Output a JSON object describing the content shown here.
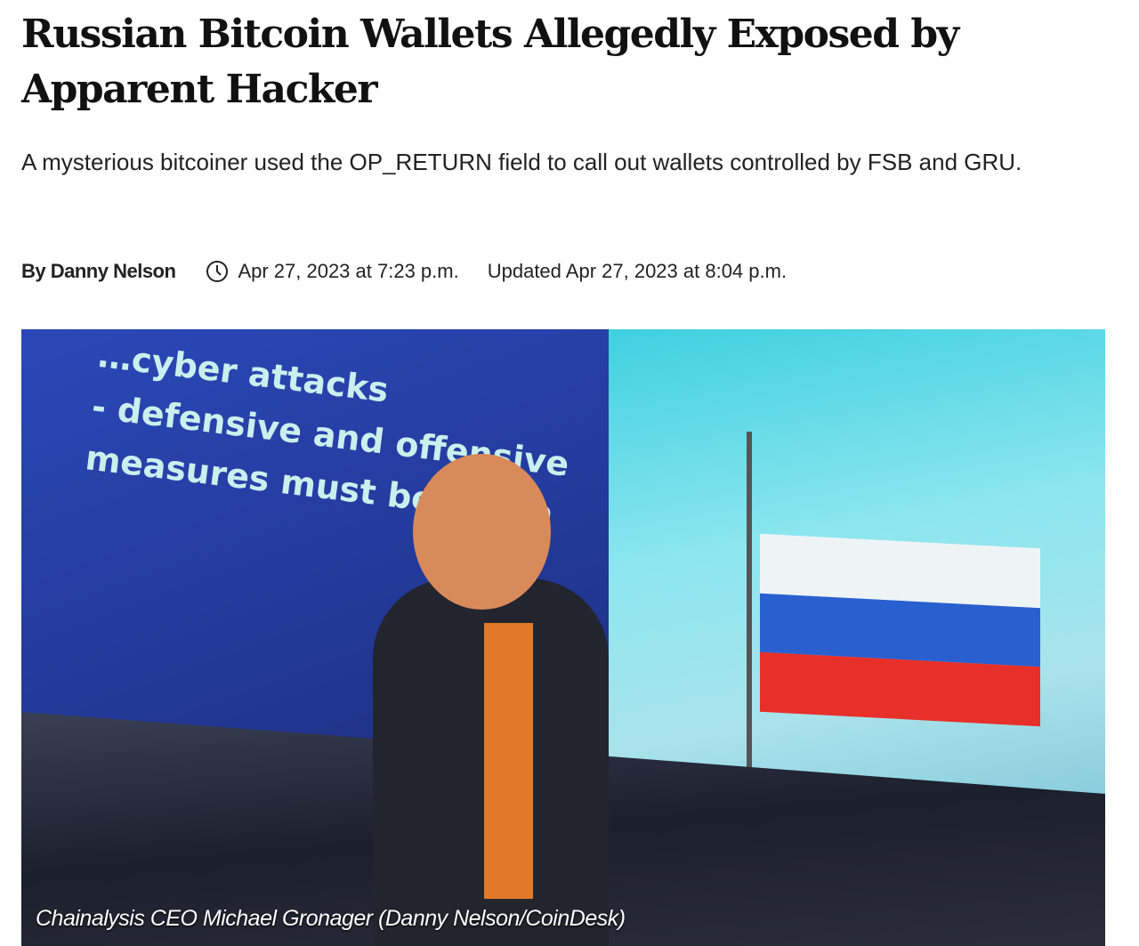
{
  "article": {
    "title": "Russian Bitcoin Wallets Allegedly Exposed by Apparent Hacker",
    "subtitle": "A mysterious bitcoiner used the OP_RETURN field to call out wallets controlled by FSB and GRU.",
    "author": "By Danny Nelson",
    "clock_icon": "clock-icon",
    "published": "Apr 27, 2023 at 7:23 p.m.",
    "updated": "Updated Apr 27, 2023 at 8:04 p.m."
  },
  "photo": {
    "slide_text": "…cyber attacks\n- defensive and offensive\nmeasures must be taken",
    "caption": "Chainalysis CEO Michael Gronager (Danny Nelson/CoinDesk)",
    "flag_colors": [
      "#f4f6f8",
      "#2a5fd0",
      "#e8302a"
    ]
  }
}
